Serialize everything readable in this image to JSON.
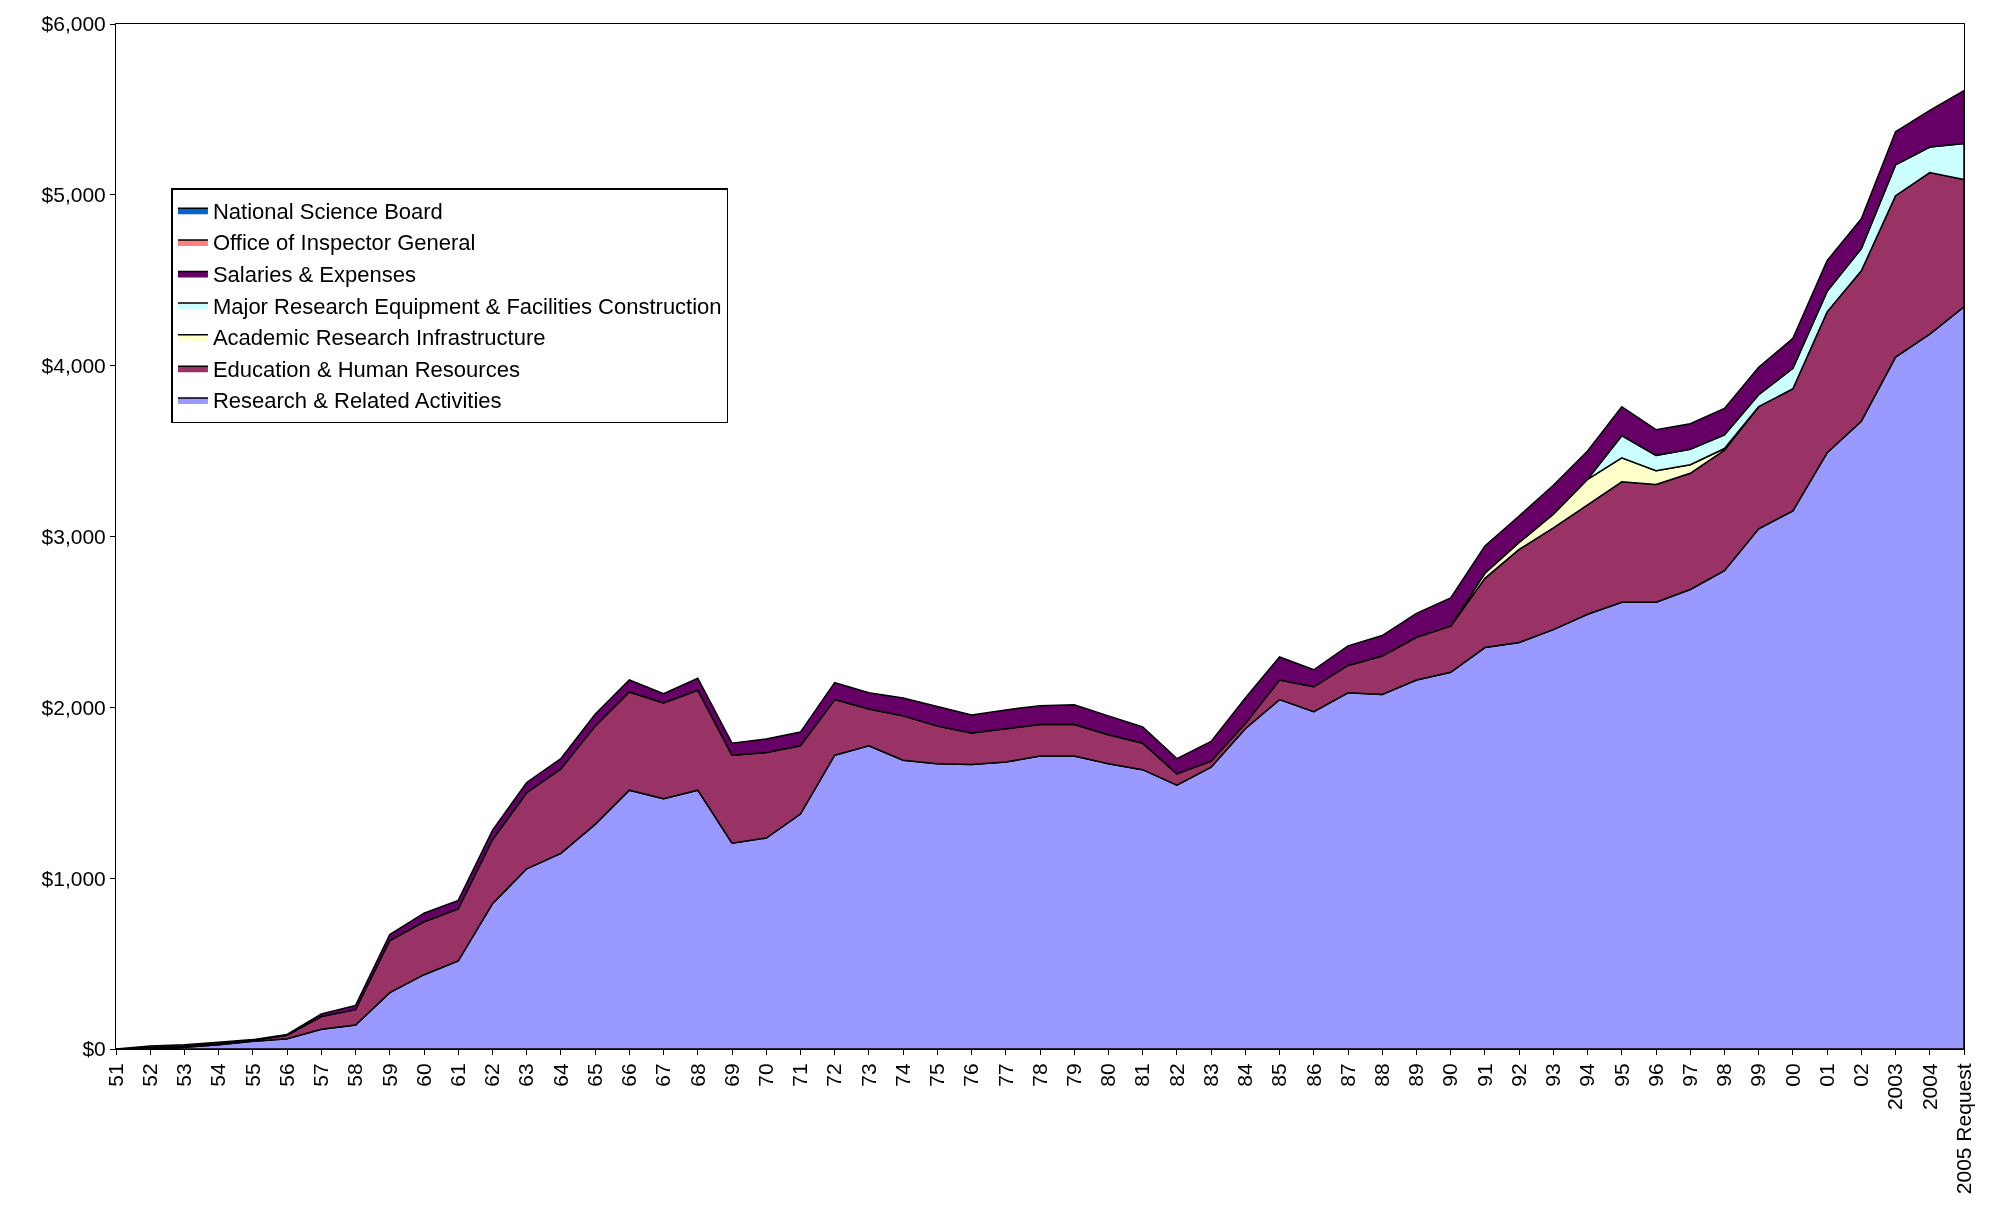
{
  "chart_data": {
    "type": "area",
    "stacked": true,
    "legend": "top left",
    "grid": false,
    "marker": "none",
    "line_style": "solid",
    "categories": [
      "51",
      "52",
      "53",
      "54",
      "55",
      "56",
      "57",
      "58",
      "59",
      "60",
      "61",
      "62",
      "63",
      "64",
      "65",
      "66",
      "67",
      "68",
      "69",
      "70",
      "71",
      "72",
      "73",
      "74",
      "75",
      "76",
      "77",
      "78",
      "79",
      "80",
      "81",
      "82",
      "83",
      "84",
      "85",
      "86",
      "87",
      "88",
      "89",
      "90",
      "91",
      "92",
      "93",
      "94",
      "95",
      "96",
      "97",
      "98",
      "99",
      "00",
      "01",
      "02",
      "2003",
      "2004",
      "2005 Request"
    ],
    "ylim": [
      0,
      6000
    ],
    "yticks": [
      {
        "value": 0,
        "label": "$0"
      },
      {
        "value": 1000,
        "label": "$1,000"
      },
      {
        "value": 2000,
        "label": "$2,000"
      },
      {
        "value": 3000,
        "label": "$3,000"
      },
      {
        "value": 4000,
        "label": "$4,000"
      },
      {
        "value": 5000,
        "label": "$5,000"
      },
      {
        "value": 6000,
        "label": "$6,000"
      }
    ],
    "series": [
      {
        "name": "Research & Related Activities",
        "color": "#9999ff",
        "values": [
          0,
          5,
          10,
          25,
          45,
          60,
          115,
          140,
          330,
          435,
          515,
          850,
          1055,
          1145,
          1315,
          1515,
          1465,
          1515,
          1205,
          1235,
          1375,
          1720,
          1775,
          1690,
          1670,
          1665,
          1680,
          1715,
          1715,
          1670,
          1635,
          1545,
          1650,
          1875,
          2045,
          1975,
          2085,
          2075,
          2160,
          2205,
          2350,
          2380,
          2455,
          2545,
          2615,
          2615,
          2690,
          2800,
          3045,
          3150,
          3490,
          3675,
          4050,
          4185,
          4345
        ]
      },
      {
        "name": "Education & Human Resources",
        "color": "#993366",
        "values": [
          0,
          3,
          5,
          5,
          5,
          20,
          75,
          90,
          305,
          310,
          305,
          375,
          445,
          495,
          575,
          575,
          560,
          585,
          515,
          500,
          400,
          325,
          215,
          260,
          220,
          185,
          195,
          185,
          185,
          170,
          155,
          65,
          35,
          30,
          115,
          145,
          160,
          225,
          250,
          270,
          405,
          545,
          595,
          640,
          705,
          690,
          680,
          705,
          715,
          715,
          825,
          880,
          945,
          945,
          745
        ]
      },
      {
        "name": "Academic Research Infrastructure",
        "color": "#ffffcc",
        "values": [
          null,
          null,
          null,
          null,
          null,
          null,
          null,
          null,
          null,
          null,
          null,
          null,
          null,
          null,
          null,
          null,
          null,
          null,
          null,
          null,
          null,
          null,
          null,
          null,
          null,
          null,
          null,
          null,
          null,
          null,
          null,
          null,
          null,
          null,
          null,
          null,
          null,
          null,
          null,
          0,
          30,
          40,
          80,
          150,
          140,
          80,
          50,
          10,
          0,
          null,
          null,
          null,
          null,
          null,
          null
        ]
      },
      {
        "name": "Major Research Equipment & Facilities Construction",
        "color": "#ccffff",
        "values": [
          null,
          null,
          null,
          null,
          null,
          null,
          null,
          null,
          null,
          null,
          null,
          null,
          null,
          null,
          null,
          null,
          null,
          null,
          null,
          null,
          null,
          null,
          null,
          null,
          null,
          null,
          null,
          null,
          null,
          null,
          null,
          null,
          null,
          null,
          null,
          null,
          null,
          null,
          null,
          null,
          null,
          null,
          null,
          0,
          130,
          90,
          90,
          80,
          70,
          120,
          120,
          130,
          180,
          150,
          210
        ]
      },
      {
        "name": "Salaries & Expenses",
        "color": "#660066",
        "values": [
          0,
          10,
          10,
          10,
          5,
          5,
          15,
          25,
          35,
          50,
          50,
          55,
          60,
          60,
          70,
          70,
          55,
          70,
          70,
          80,
          80,
          100,
          95,
          105,
          115,
          105,
          110,
          110,
          115,
          110,
          95,
          90,
          115,
          150,
          135,
          100,
          115,
          120,
          140,
          165,
          160,
          155,
          170,
          165,
          170,
          150,
          150,
          155,
          160,
          175,
          180,
          175,
          195,
          215,
          310
        ]
      },
      {
        "name": "Office of Inspector General",
        "color": "#ff8080",
        "values": [
          null,
          null,
          null,
          null,
          null,
          null,
          null,
          null,
          null,
          null,
          null,
          null,
          null,
          null,
          null,
          null,
          null,
          null,
          null,
          null,
          null,
          null,
          null,
          null,
          null,
          null,
          null,
          null,
          null,
          null,
          null,
          null,
          null,
          null,
          null,
          null,
          null,
          null,
          null,
          null,
          null,
          null,
          null,
          null,
          null,
          null,
          null,
          null,
          null,
          null,
          null,
          null,
          null,
          null,
          null
        ]
      },
      {
        "name": "National Science Board",
        "color": "#0066cc",
        "values": [
          null,
          null,
          null,
          null,
          null,
          null,
          null,
          null,
          null,
          null,
          null,
          null,
          null,
          null,
          null,
          null,
          null,
          null,
          null,
          null,
          null,
          null,
          null,
          null,
          null,
          null,
          null,
          null,
          null,
          null,
          null,
          null,
          null,
          null,
          null,
          null,
          null,
          null,
          null,
          null,
          null,
          null,
          null,
          null,
          null,
          null,
          null,
          null,
          null,
          null,
          null,
          null,
          null,
          null,
          null
        ]
      }
    ]
  }
}
